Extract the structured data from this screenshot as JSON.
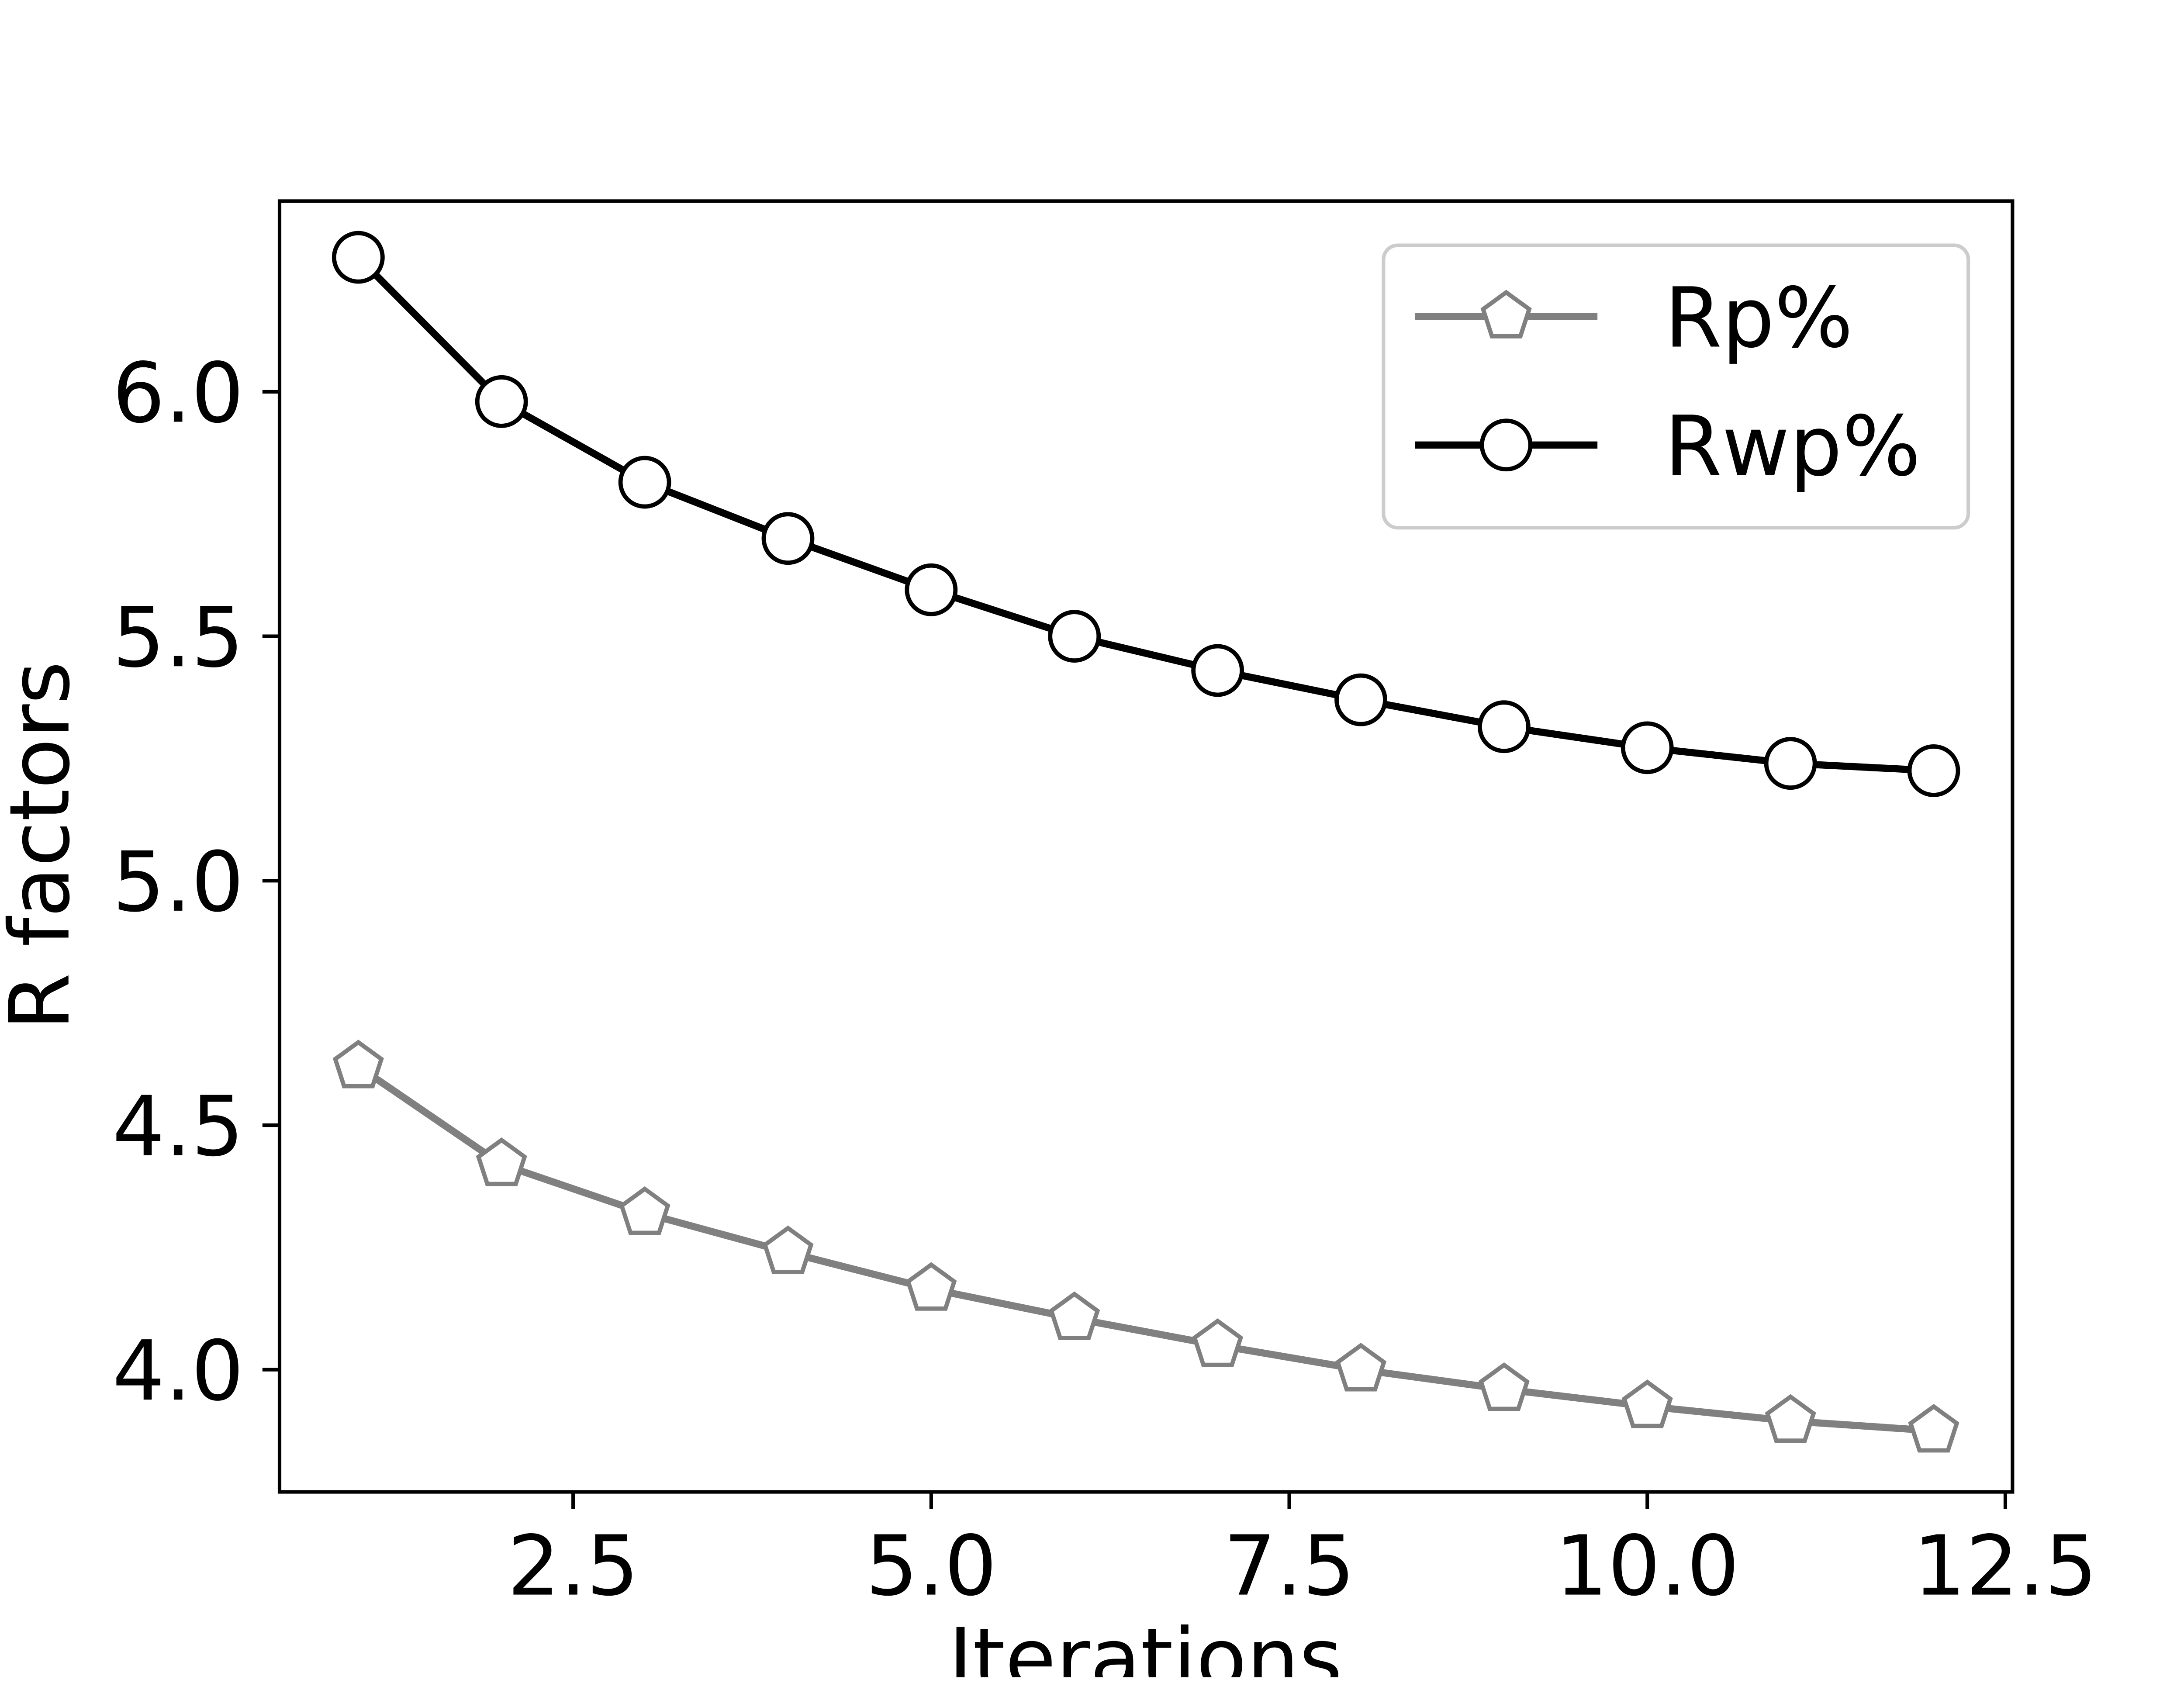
{
  "chart_data": {
    "type": "line",
    "title": "",
    "xlabel": "Iterations",
    "ylabel": "R factors",
    "xlim": [
      0.45,
      12.55
    ],
    "ylim": [
      3.75,
      6.39
    ],
    "x_ticks": [
      2.5,
      5.0,
      7.5,
      10.0,
      12.5
    ],
    "x_tick_labels": [
      "2.5",
      "5.0",
      "7.5",
      "10.0",
      "12.5"
    ],
    "y_ticks": [
      4.0,
      4.5,
      5.0,
      5.5,
      6.0
    ],
    "y_tick_labels": [
      "4.0",
      "4.5",
      "5.0",
      "5.5",
      "6.0"
    ],
    "grid": false,
    "legend_position": "top-right",
    "x": [
      1,
      2,
      3,
      4,
      5,
      6,
      7,
      8,
      9,
      10,
      11,
      12
    ],
    "series": [
      {
        "name": "Rp%",
        "marker": "pentagon",
        "color": "#808080",
        "values": [
          4.62,
          4.42,
          4.32,
          4.24,
          4.165,
          4.105,
          4.05,
          4.0,
          3.96,
          3.925,
          3.895,
          3.875
        ]
      },
      {
        "name": "Rwp%",
        "marker": "circle",
        "color": "#000000",
        "values": [
          6.275,
          5.98,
          5.815,
          5.7,
          5.595,
          5.5,
          5.43,
          5.37,
          5.315,
          5.272,
          5.24,
          5.225
        ]
      }
    ]
  }
}
